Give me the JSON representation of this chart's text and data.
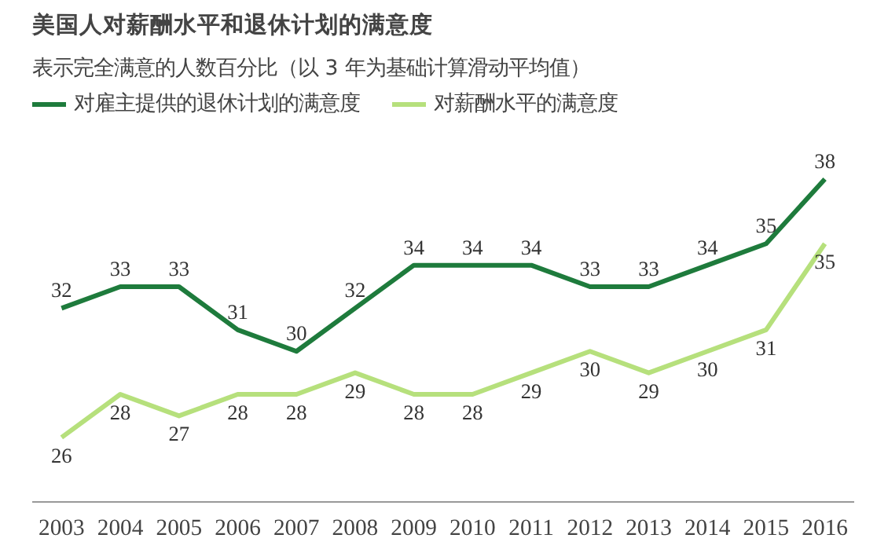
{
  "chart_data": {
    "type": "line",
    "title": "美国人对薪酬水平和退休计划的满意度",
    "subtitle": "表示完全满意的人数百分比（以 3 年为基础计算滑动平均值）",
    "categories": [
      "2003",
      "2004",
      "2005",
      "2006",
      "2007",
      "2008",
      "2009",
      "2010",
      "2011",
      "2012",
      "2013",
      "2014",
      "2015",
      "2016"
    ],
    "series": [
      {
        "name": "对雇主提供的退休计划的满意度",
        "color": "#1e7b3c",
        "values": [
          32,
          33,
          33,
          31,
          30,
          32,
          34,
          34,
          34,
          33,
          33,
          34,
          35,
          38
        ]
      },
      {
        "name": "对薪酬水平的满意度",
        "color": "#b6e07c",
        "values": [
          26,
          28,
          27,
          28,
          28,
          29,
          28,
          28,
          29,
          30,
          29,
          30,
          31,
          35
        ]
      }
    ],
    "data_labels": true,
    "legend": "top left",
    "grid": false,
    "marker": "none",
    "line_style": "solid"
  }
}
